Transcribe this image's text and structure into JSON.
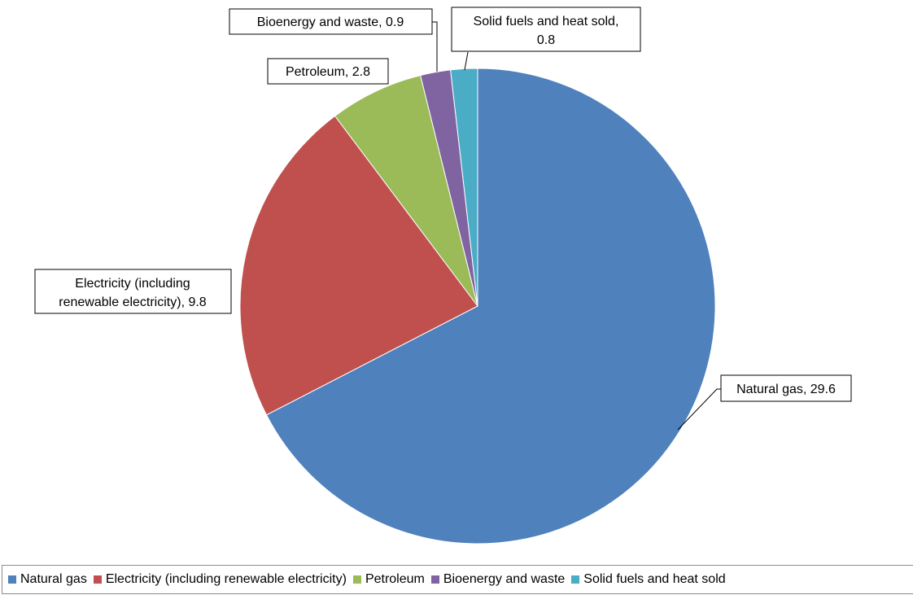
{
  "chart_data": {
    "type": "pie",
    "title": "",
    "slices": [
      {
        "name": "Natural gas",
        "value": 29.6,
        "color": "#4f81bd",
        "label_text": "Natural gas, 29.6"
      },
      {
        "name": "Electricity (including renewable electricity)",
        "value": 9.8,
        "color": "#c0504d",
        "label_lines": [
          "Electricity (including",
          "renewable electricity), 9.8"
        ]
      },
      {
        "name": "Petroleum",
        "value": 2.8,
        "color": "#9bbb59",
        "label_text": "Petroleum, 2.8"
      },
      {
        "name": "Bioenergy and waste",
        "value": 0.9,
        "color": "#8064a2",
        "label_text": "Bioenergy and waste, 0.9"
      },
      {
        "name": "Solid fuels and heat sold",
        "value": 0.8,
        "color": "#4bacc6",
        "label_lines": [
          "Solid fuels and heat sold,",
          "0.8"
        ]
      }
    ],
    "legend_position": "bottom",
    "start_angle": "12 o'clock",
    "direction": "clockwise"
  }
}
